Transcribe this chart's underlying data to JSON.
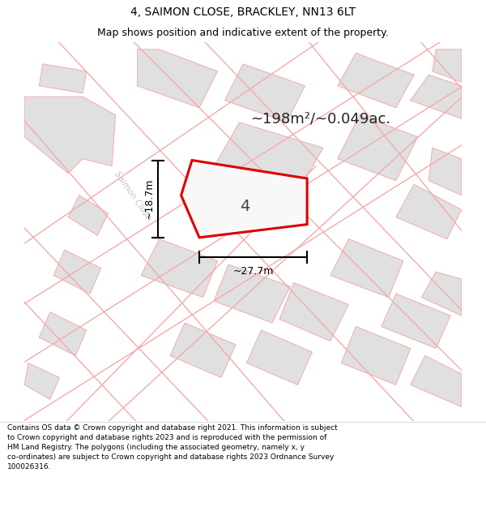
{
  "title": "4, SAIMON CLOSE, BRACKLEY, NN13 6LT",
  "subtitle": "Map shows position and indicative extent of the property.",
  "area_text": "~198m²/~0.049ac.",
  "width_label": "~27.7m",
  "height_label": "~18.7m",
  "plot_number": "4",
  "road_label": "Saimon Close",
  "footer_lines": [
    "Contains OS data © Crown copyright and database right 2021. This information is subject",
    "to Crown copyright and database rights 2023 and is reproduced with the permission of",
    "HM Land Registry. The polygons (including the associated geometry, namely x, y",
    "co-ordinates) are subject to Crown copyright and database rights 2023 Ordnance Survey",
    "100026316."
  ],
  "bg_color": "#ffffff",
  "map_bg": "#f8f8f8",
  "building_color": "#e0e0e0",
  "road_line_color": "#f4aaaa",
  "plot_outline_color": "#dd0000",
  "plot_fill_color": "#f8f8f8",
  "dim_line_color": "#000000",
  "title_color": "#000000",
  "footer_color": "#000000",
  "road_label_color": "#c0c0c0",
  "title_fontsize": 10,
  "subtitle_fontsize": 9,
  "area_fontsize": 13,
  "plot_label_fontsize": 14,
  "dim_fontsize": 9,
  "road_label_fontsize": 7.5,
  "footer_fontsize": 6.5
}
